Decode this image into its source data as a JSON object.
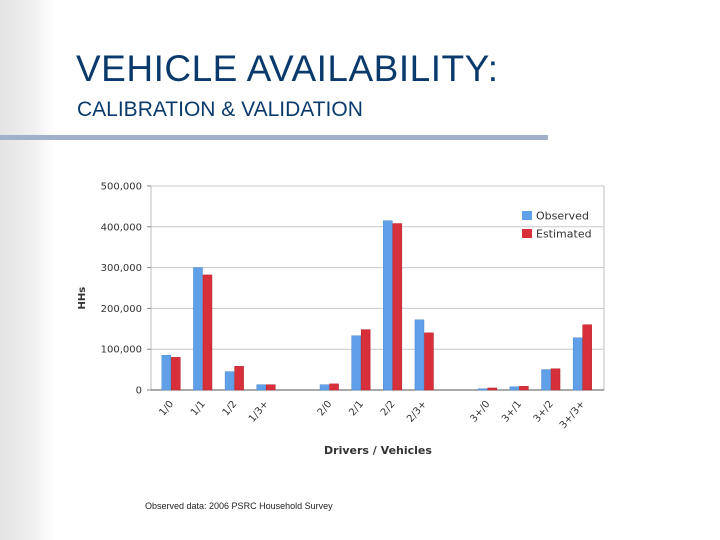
{
  "slide": {
    "title": "VEHICLE AVAILABILITY:",
    "subtitle": "CALIBRATION & VALIDATION",
    "source_note": "Observed data: 2006 PSRC Household Survey"
  },
  "chart_data": {
    "type": "bar",
    "title": "",
    "xlabel": "Drivers / Vehicles",
    "ylabel": "HHs",
    "ylim": [
      0,
      500000
    ],
    "yticks": [
      0,
      100000,
      200000,
      300000,
      400000,
      500000
    ],
    "ytick_labels": [
      "0",
      "100,000",
      "200,000",
      "300,000",
      "400,000",
      "500,000"
    ],
    "legend_position": "top-right",
    "categories": [
      "1/0",
      "1/1",
      "1/2",
      "1/3+",
      "2/0",
      "2/1",
      "2/2",
      "2/3+",
      "3+/0",
      "3+/1",
      "3+/2",
      "3+/3+"
    ],
    "series": [
      {
        "name": "Observed",
        "color": "#5fa0e8",
        "values": [
          85000,
          300000,
          45000,
          13000,
          13000,
          133000,
          415000,
          172000,
          3000,
          8000,
          50000,
          128000
        ]
      },
      {
        "name": "Estimated",
        "color": "#d8303a",
        "values": [
          80000,
          282000,
          58000,
          13000,
          15000,
          148000,
          408000,
          140000,
          5000,
          9000,
          52000,
          160000
        ]
      }
    ]
  }
}
